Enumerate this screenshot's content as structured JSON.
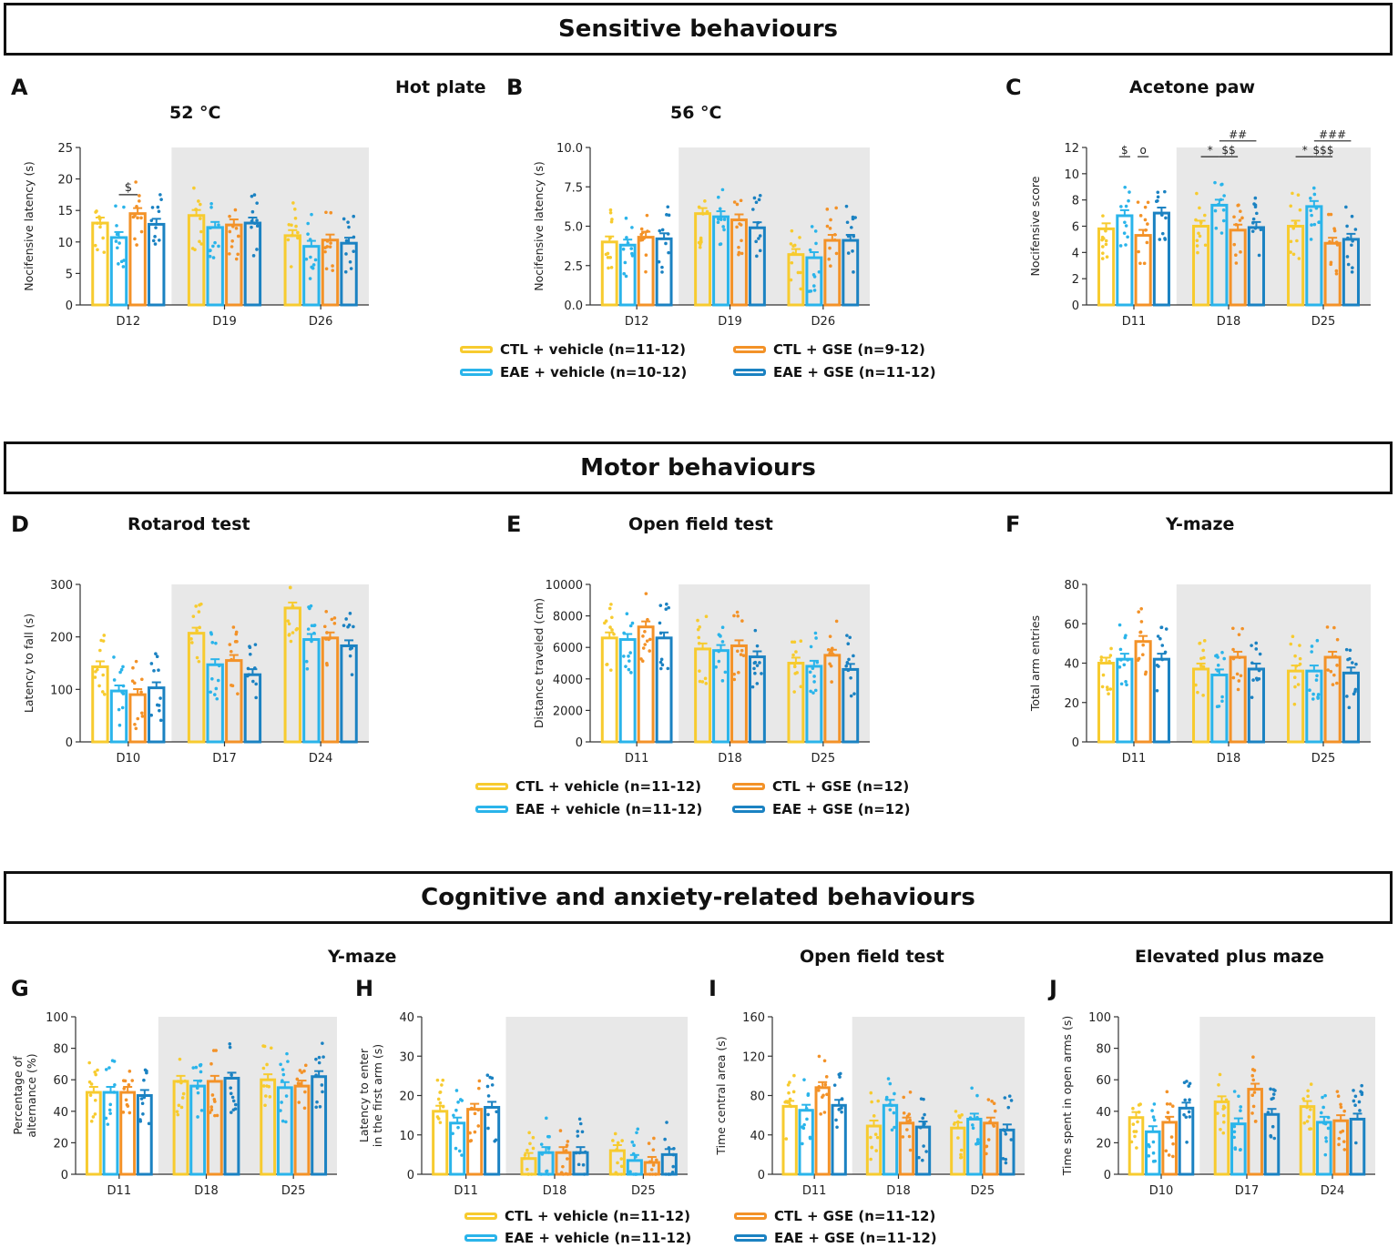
{
  "sections": {
    "sensitive": "Sensitive behaviours",
    "motor": "Motor behaviours",
    "cognitive": "Cognitive and anxiety-related behaviours"
  },
  "group_titles": {
    "hot_plate": "Hot plate",
    "y_maze_cog": "Y-maze",
    "open_field_cog": "Open field test",
    "epm": "Elevated plus maze"
  },
  "colors": {
    "ctl_vehicle": "#F7CB2F",
    "eae_vehicle": "#2AB4EA",
    "ctl_gse": "#F39228",
    "eae_gse": "#1B82C2",
    "shade": "#E8E8E8"
  },
  "legends": {
    "sensitive": [
      "CTL + vehicle (n=11-12)",
      "EAE + vehicle (n=10-12)",
      "CTL + GSE (n=9-12)",
      "EAE + GSE (n=11-12)"
    ],
    "motor": [
      "CTL + vehicle (n=11-12)",
      "EAE + vehicle (n=11-12)",
      "CTL + GSE (n=12)",
      "EAE + GSE (n=12)"
    ],
    "cognitive": [
      "CTL + vehicle (n=11-12)",
      "EAE + vehicle (n=11-12)",
      "CTL + GSE (n=11-12)",
      "EAE + GSE (n=11-12)"
    ]
  },
  "chart_data": [
    {
      "id": "A",
      "letter": "A",
      "title": "52 °C",
      "type": "bar",
      "ylabel": "Nocifensive latency (s)",
      "ylim": [
        0,
        25
      ],
      "yticks": [
        "0",
        "5",
        "10",
        "15",
        "20",
        "25"
      ],
      "categories": [
        "D12",
        "D19",
        "D26"
      ],
      "series": [
        {
          "name": "CTL + vehicle",
          "values": [
            13,
            14.2,
            11
          ]
        },
        {
          "name": "EAE + vehicle",
          "values": [
            10.7,
            12.3,
            9.3
          ]
        },
        {
          "name": "CTL + GSE",
          "values": [
            14.5,
            12.7,
            10.3
          ]
        },
        {
          "name": "EAE + GSE",
          "values": [
            12.8,
            13,
            9.8
          ]
        }
      ],
      "annotations": [
        "$"
      ]
    },
    {
      "id": "B",
      "letter": "B",
      "title": "56 °C",
      "type": "bar",
      "ylabel": "Nocifensive latency (s)",
      "ylim": [
        0,
        10
      ],
      "yticks": [
        "0.0",
        "2.5",
        "5.0",
        "7.5",
        "10.0"
      ],
      "categories": [
        "D12",
        "D19",
        "D26"
      ],
      "series": [
        {
          "name": "CTL + vehicle",
          "values": [
            4,
            5.8,
            3.2
          ]
        },
        {
          "name": "EAE + vehicle",
          "values": [
            3.8,
            5.6,
            3
          ]
        },
        {
          "name": "CTL + GSE",
          "values": [
            4.3,
            5.4,
            4.1
          ]
        },
        {
          "name": "EAE + GSE",
          "values": [
            4.2,
            4.9,
            4.1
          ]
        }
      ],
      "annotations": []
    },
    {
      "id": "C",
      "letter": "C",
      "title": "Acetone paw",
      "type": "bar",
      "ylabel": "Nocifensive score",
      "ylim": [
        0,
        12
      ],
      "yticks": [
        "0",
        "2",
        "4",
        "6",
        "8",
        "10",
        "12"
      ],
      "categories": [
        "D11",
        "D18",
        "D25"
      ],
      "series": [
        {
          "name": "CTL + vehicle",
          "values": [
            5.8,
            6,
            6
          ]
        },
        {
          "name": "EAE + vehicle",
          "values": [
            6.8,
            7.6,
            7.5
          ]
        },
        {
          "name": "CTL + GSE",
          "values": [
            5.3,
            5.7,
            4.7
          ]
        },
        {
          "name": "EAE + GSE",
          "values": [
            7,
            5.9,
            5
          ]
        }
      ],
      "annotations": [
        "$",
        "o",
        "*",
        "$$",
        "##",
        "*",
        "$$$",
        "###"
      ]
    },
    {
      "id": "D",
      "letter": "D",
      "title": "Rotarod test",
      "type": "bar",
      "ylabel": "Latency to fall (s)",
      "ylim": [
        0,
        300
      ],
      "yticks": [
        "0",
        "100",
        "200",
        "300"
      ],
      "categories": [
        "D10",
        "D17",
        "D24"
      ],
      "series": [
        {
          "name": "CTL + vehicle",
          "values": [
            143,
            207,
            255
          ]
        },
        {
          "name": "EAE + vehicle",
          "values": [
            97,
            147,
            195
          ]
        },
        {
          "name": "CTL + GSE",
          "values": [
            90,
            155,
            198
          ]
        },
        {
          "name": "EAE + GSE",
          "values": [
            103,
            128,
            183
          ]
        }
      ],
      "annotations": []
    },
    {
      "id": "E",
      "letter": "E",
      "title": "Open field test",
      "type": "bar",
      "ylabel": "Distance traveled (cm)",
      "ylim": [
        0,
        10000
      ],
      "yticks": [
        "0",
        "2000",
        "4000",
        "6000",
        "8000",
        "10000"
      ],
      "categories": [
        "D11",
        "D18",
        "D25"
      ],
      "series": [
        {
          "name": "CTL + vehicle",
          "values": [
            6600,
            5900,
            5000
          ]
        },
        {
          "name": "EAE + vehicle",
          "values": [
            6500,
            5800,
            4800
          ]
        },
        {
          "name": "CTL + GSE",
          "values": [
            7300,
            6100,
            5500
          ]
        },
        {
          "name": "EAE + GSE",
          "values": [
            6600,
            5400,
            4600
          ]
        }
      ],
      "annotations": []
    },
    {
      "id": "F",
      "letter": "F",
      "title": "Y-maze",
      "type": "bar",
      "ylabel": "Total arm entries",
      "ylim": [
        0,
        80
      ],
      "yticks": [
        "0",
        "20",
        "40",
        "60",
        "80"
      ],
      "categories": [
        "D11",
        "D18",
        "D25"
      ],
      "series": [
        {
          "name": "CTL + vehicle",
          "values": [
            40,
            37,
            36
          ]
        },
        {
          "name": "EAE + vehicle",
          "values": [
            42,
            34,
            36
          ]
        },
        {
          "name": "CTL + GSE",
          "values": [
            51,
            43,
            43
          ]
        },
        {
          "name": "EAE + GSE",
          "values": [
            42,
            37,
            35
          ]
        }
      ],
      "annotations": []
    },
    {
      "id": "G",
      "letter": "G",
      "title": "",
      "type": "bar",
      "ylabel": "Percentage of alternance (%)",
      "ylabel_lines": [
        "Percentage of",
        "alternance (%)"
      ],
      "ylim": [
        0,
        100
      ],
      "yticks": [
        "0",
        "20",
        "40",
        "60",
        "80",
        "100"
      ],
      "categories": [
        "D11",
        "D18",
        "D25"
      ],
      "series": [
        {
          "name": "CTL + vehicle",
          "values": [
            52,
            59,
            60
          ]
        },
        {
          "name": "EAE + vehicle",
          "values": [
            52,
            56,
            55
          ]
        },
        {
          "name": "CTL + GSE",
          "values": [
            52,
            59,
            56
          ]
        },
        {
          "name": "EAE + GSE",
          "values": [
            50,
            61,
            62
          ]
        }
      ],
      "annotations": []
    },
    {
      "id": "H",
      "letter": "H",
      "title": "",
      "type": "bar",
      "ylabel": "Latency to enter in the first arm (s)",
      "ylabel_lines": [
        "Latency to enter",
        "in the first arm (s)"
      ],
      "ylim": [
        0,
        40
      ],
      "yticks": [
        "0",
        "10",
        "20",
        "30",
        "40"
      ],
      "categories": [
        "D11",
        "D18",
        "D25"
      ],
      "series": [
        {
          "name": "CTL + vehicle",
          "values": [
            16,
            4,
            6
          ]
        },
        {
          "name": "EAE + vehicle",
          "values": [
            13,
            5.5,
            3.5
          ]
        },
        {
          "name": "CTL + GSE",
          "values": [
            16.5,
            5.5,
            3
          ]
        },
        {
          "name": "EAE + GSE",
          "values": [
            17,
            5.5,
            5
          ]
        }
      ],
      "annotations": []
    },
    {
      "id": "I",
      "letter": "I",
      "title": "",
      "type": "bar",
      "ylabel": "Time central area (s)",
      "ylim": [
        0,
        160
      ],
      "yticks": [
        "0",
        "40",
        "80",
        "120",
        "160"
      ],
      "categories": [
        "D11",
        "D18",
        "D25"
      ],
      "series": [
        {
          "name": "CTL + vehicle",
          "values": [
            69,
            49,
            47
          ]
        },
        {
          "name": "EAE + vehicle",
          "values": [
            65,
            70,
            56
          ]
        },
        {
          "name": "CTL + GSE",
          "values": [
            88,
            52,
            52
          ]
        },
        {
          "name": "EAE + GSE",
          "values": [
            70,
            48,
            45
          ]
        }
      ],
      "annotations": []
    },
    {
      "id": "J",
      "letter": "J",
      "title": "",
      "type": "bar",
      "ylabel": "Time spent in open arms (s)",
      "ylim": [
        0,
        100
      ],
      "yticks": [
        "0",
        "20",
        "40",
        "60",
        "80",
        "100"
      ],
      "categories": [
        "D10",
        "D17",
        "D24"
      ],
      "series": [
        {
          "name": "CTL + vehicle",
          "values": [
            36,
            46,
            43
          ]
        },
        {
          "name": "EAE + vehicle",
          "values": [
            27,
            32,
            33
          ]
        },
        {
          "name": "CTL + GSE",
          "values": [
            33,
            54,
            34
          ]
        },
        {
          "name": "EAE + GSE",
          "values": [
            42,
            38,
            35
          ]
        }
      ],
      "annotations": []
    }
  ]
}
